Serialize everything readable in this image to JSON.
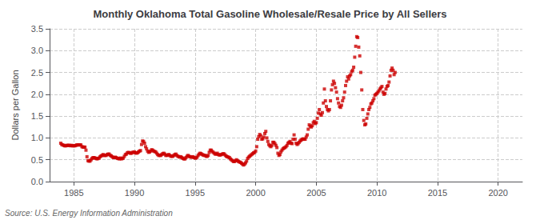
{
  "chart_data": {
    "type": "scatter",
    "title": "Monthly Oklahoma Total Gasoline Wholesale/Resale Price by All Sellers",
    "ylabel": "Dollars per Gallon",
    "annotations": [
      "Source: U.S. Energy Information Administration"
    ],
    "color": "#cc0000",
    "marker": "square",
    "grid": true,
    "xlim": [
      1983,
      2022
    ],
    "xticks": [
      1985,
      1990,
      1995,
      2000,
      2005,
      2010,
      2015,
      2020
    ],
    "ylim": [
      0.0,
      3.5
    ],
    "yticks": [
      {
        "value": 0.0,
        "label": "0.0"
      },
      0.5,
      {
        "value": 1.0,
        "label": "1.0"
      },
      1.5,
      {
        "value": 2.0,
        "label": "2.0"
      },
      2.5,
      {
        "value": 3.0,
        "label": "3.0"
      },
      3.5
    ],
    "x": [
      1983.917,
      1984.0,
      1984.083,
      1984.167,
      1984.25,
      1984.333,
      1984.417,
      1984.5,
      1984.583,
      1984.667,
      1984.75,
      1984.833,
      1984.917,
      1985.0,
      1985.083,
      1985.167,
      1985.25,
      1985.333,
      1985.417,
      1985.5,
      1985.583,
      1985.667,
      1985.75,
      1985.833,
      1985.917,
      1986.0,
      1986.083,
      1986.167,
      1986.25,
      1986.333,
      1986.417,
      1986.5,
      1986.583,
      1986.667,
      1986.75,
      1986.833,
      1986.917,
      1987.0,
      1987.083,
      1987.167,
      1987.25,
      1987.333,
      1987.417,
      1987.5,
      1987.583,
      1987.667,
      1987.75,
      1987.833,
      1987.917,
      1988.0,
      1988.083,
      1988.167,
      1988.25,
      1988.333,
      1988.417,
      1988.5,
      1988.583,
      1988.667,
      1988.75,
      1988.833,
      1988.917,
      1989.0,
      1989.083,
      1989.167,
      1989.25,
      1989.333,
      1989.417,
      1989.5,
      1989.583,
      1989.667,
      1989.75,
      1989.833,
      1989.917,
      1990.0,
      1990.083,
      1990.167,
      1990.25,
      1990.333,
      1990.417,
      1990.5,
      1990.583,
      1990.667,
      1990.75,
      1990.833,
      1990.917,
      1991.0,
      1991.083,
      1991.167,
      1991.25,
      1991.333,
      1991.417,
      1991.5,
      1991.583,
      1991.667,
      1991.75,
      1991.833,
      1991.917,
      1992.0,
      1992.083,
      1992.167,
      1992.25,
      1992.333,
      1992.417,
      1992.5,
      1992.583,
      1992.667,
      1992.75,
      1992.833,
      1992.917,
      1993.0,
      1993.083,
      1993.167,
      1993.25,
      1993.333,
      1993.417,
      1993.5,
      1993.583,
      1993.667,
      1993.75,
      1993.833,
      1993.917,
      1994.0,
      1994.083,
      1994.167,
      1994.25,
      1994.333,
      1994.417,
      1994.5,
      1994.583,
      1994.667,
      1994.75,
      1994.833,
      1994.917,
      1995.0,
      1995.083,
      1995.167,
      1995.25,
      1995.333,
      1995.417,
      1995.5,
      1995.583,
      1995.667,
      1995.75,
      1995.833,
      1995.917,
      1996.0,
      1996.083,
      1996.167,
      1996.25,
      1996.333,
      1996.417,
      1996.5,
      1996.583,
      1996.667,
      1996.75,
      1996.833,
      1996.917,
      1997.0,
      1997.083,
      1997.167,
      1997.25,
      1997.333,
      1997.417,
      1997.5,
      1997.583,
      1997.667,
      1997.75,
      1997.833,
      1997.917,
      1998.0,
      1998.083,
      1998.167,
      1998.25,
      1998.333,
      1998.417,
      1998.5,
      1998.583,
      1998.667,
      1998.75,
      1998.833,
      1998.917,
      1999.0,
      1999.083,
      1999.167,
      1999.25,
      1999.333,
      1999.417,
      1999.5,
      1999.583,
      1999.667,
      1999.75,
      1999.833,
      1999.917,
      2000.0,
      2000.083,
      2000.167,
      2000.25,
      2000.333,
      2000.417,
      2000.5,
      2000.583,
      2000.667,
      2000.75,
      2000.833,
      2000.917,
      2001.0,
      2001.083,
      2001.167,
      2001.25,
      2001.333,
      2001.417,
      2001.5,
      2001.583,
      2001.667,
      2001.75,
      2001.833,
      2001.917,
      2002.0,
      2002.083,
      2002.167,
      2002.25,
      2002.333,
      2002.417,
      2002.5,
      2002.583,
      2002.667,
      2002.75,
      2002.833,
      2002.917,
      2003.0,
      2003.083,
      2003.167,
      2003.25,
      2003.333,
      2003.417,
      2003.5,
      2003.583,
      2003.667,
      2003.75,
      2003.833,
      2003.917,
      2004.0,
      2004.083,
      2004.167,
      2004.25,
      2004.333,
      2004.417,
      2004.5,
      2004.583,
      2004.667,
      2004.75,
      2004.833,
      2004.917,
      2005.0,
      2005.083,
      2005.167,
      2005.25,
      2005.333,
      2005.417,
      2005.5,
      2005.583,
      2005.667,
      2005.75,
      2005.833,
      2005.917,
      2006.0,
      2006.083,
      2006.167,
      2006.25,
      2006.333,
      2006.417,
      2006.5,
      2006.583,
      2006.667,
      2006.75,
      2006.833,
      2006.917,
      2007.0,
      2007.083,
      2007.167,
      2007.25,
      2007.333,
      2007.417,
      2007.5,
      2007.583,
      2007.667,
      2007.75,
      2007.833,
      2007.917,
      2008.0,
      2008.083,
      2008.167,
      2008.25,
      2008.333,
      2008.417,
      2008.5,
      2008.583,
      2008.667,
      2008.75,
      2008.833,
      2008.917,
      2009.0,
      2009.083,
      2009.167,
      2009.25,
      2009.333,
      2009.417,
      2009.5,
      2009.583,
      2009.667,
      2009.75,
      2009.833,
      2009.917,
      2010.0,
      2010.083,
      2010.167,
      2010.25,
      2010.333,
      2010.417,
      2010.5,
      2010.583,
      2010.667,
      2010.75,
      2010.833,
      2010.917,
      2011.0,
      2011.083,
      2011.167,
      2011.25,
      2011.333,
      2011.417,
      2011.5
    ],
    "values": [
      0.88,
      0.85,
      0.84,
      0.83,
      0.82,
      0.82,
      0.83,
      0.83,
      0.83,
      0.83,
      0.82,
      0.83,
      0.82,
      0.82,
      0.82,
      0.83,
      0.84,
      0.84,
      0.84,
      0.84,
      0.84,
      0.8,
      0.79,
      0.79,
      0.79,
      0.72,
      0.57,
      0.48,
      0.47,
      0.47,
      0.5,
      0.53,
      0.55,
      0.55,
      0.54,
      0.53,
      0.52,
      0.53,
      0.54,
      0.57,
      0.59,
      0.6,
      0.62,
      0.6,
      0.6,
      0.6,
      0.62,
      0.63,
      0.63,
      0.6,
      0.59,
      0.57,
      0.55,
      0.55,
      0.56,
      0.55,
      0.53,
      0.53,
      0.52,
      0.54,
      0.52,
      0.53,
      0.54,
      0.58,
      0.62,
      0.63,
      0.66,
      0.67,
      0.66,
      0.65,
      0.65,
      0.67,
      0.67,
      0.68,
      0.66,
      0.65,
      0.66,
      0.68,
      0.7,
      0.71,
      0.85,
      0.93,
      0.92,
      0.88,
      0.8,
      0.75,
      0.7,
      0.67,
      0.68,
      0.7,
      0.73,
      0.72,
      0.7,
      0.69,
      0.68,
      0.65,
      0.62,
      0.6,
      0.6,
      0.6,
      0.62,
      0.64,
      0.65,
      0.63,
      0.6,
      0.6,
      0.61,
      0.62,
      0.6,
      0.58,
      0.58,
      0.58,
      0.6,
      0.62,
      0.63,
      0.6,
      0.58,
      0.57,
      0.56,
      0.57,
      0.55,
      0.53,
      0.52,
      0.52,
      0.55,
      0.58,
      0.6,
      0.58,
      0.57,
      0.56,
      0.56,
      0.57,
      0.55,
      0.54,
      0.54,
      0.56,
      0.6,
      0.63,
      0.65,
      0.64,
      0.62,
      0.61,
      0.6,
      0.6,
      0.58,
      0.58,
      0.6,
      0.67,
      0.72,
      0.72,
      0.69,
      0.67,
      0.65,
      0.63,
      0.63,
      0.65,
      0.62,
      0.61,
      0.61,
      0.62,
      0.63,
      0.64,
      0.63,
      0.6,
      0.58,
      0.57,
      0.56,
      0.55,
      0.52,
      0.5,
      0.48,
      0.46,
      0.46,
      0.48,
      0.5,
      0.48,
      0.46,
      0.45,
      0.44,
      0.42,
      0.4,
      0.38,
      0.4,
      0.43,
      0.47,
      0.53,
      0.56,
      0.58,
      0.6,
      0.62,
      0.64,
      0.66,
      0.67,
      0.7,
      0.8,
      0.97,
      1.03,
      1.08,
      1.05,
      0.97,
      0.98,
      1.02,
      1.1,
      1.15,
      1.0,
      0.92,
      0.85,
      0.82,
      0.8,
      0.83,
      0.9,
      0.9,
      0.87,
      0.83,
      0.78,
      0.65,
      0.6,
      0.62,
      0.68,
      0.72,
      0.75,
      0.77,
      0.78,
      0.8,
      0.83,
      0.88,
      0.9,
      0.92,
      0.88,
      0.87,
      0.97,
      1.07,
      0.97,
      0.88,
      0.85,
      0.87,
      0.9,
      0.93,
      0.95,
      0.97,
      0.98,
      0.97,
      0.97,
      1.02,
      1.07,
      1.2,
      1.3,
      1.27,
      1.25,
      1.28,
      1.35,
      1.38,
      1.33,
      1.35,
      1.45,
      1.57,
      1.65,
      1.55,
      1.52,
      1.58,
      1.8,
      2.12,
      1.85,
      1.72,
      1.65,
      1.62,
      1.65,
      1.85,
      2.1,
      2.22,
      2.3,
      2.25,
      2.15,
      2.05,
      1.9,
      1.8,
      1.72,
      1.7,
      1.75,
      1.85,
      1.92,
      2.05,
      2.2,
      2.3,
      2.4,
      2.35,
      2.42,
      2.45,
      2.52,
      2.55,
      2.62,
      2.85,
      3.1,
      3.32,
      3.3,
      3.08,
      2.88,
      2.5,
      2.1,
      1.65,
      1.4,
      1.3,
      1.32,
      1.45,
      1.55,
      1.65,
      1.7,
      1.78,
      1.8,
      1.85,
      1.9,
      1.98,
      2.0,
      2.02,
      2.05,
      2.08,
      2.12,
      2.15,
      2.18,
      2.05,
      2.0,
      2.02,
      2.12,
      2.18,
      2.2,
      2.28,
      2.42,
      2.55,
      2.6,
      2.55,
      2.45,
      2.5
    ]
  }
}
